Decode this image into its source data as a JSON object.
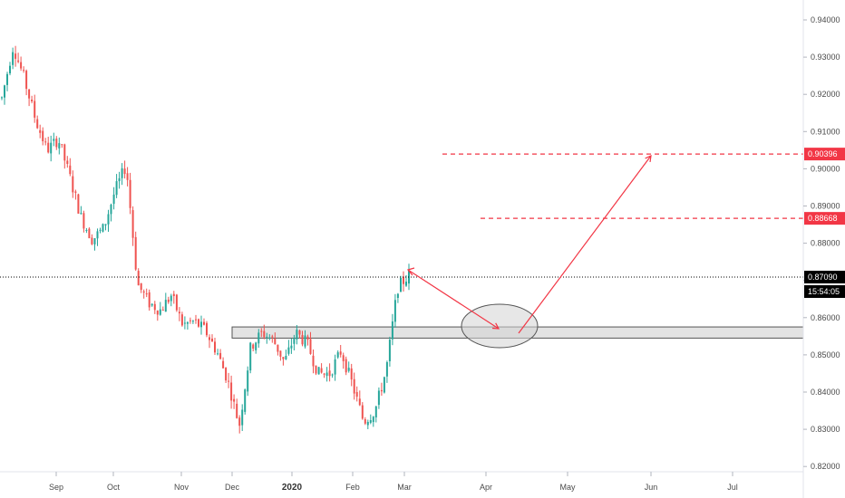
{
  "chart_data": {
    "type": "candlestick",
    "ylim": [
      0.8175,
      0.9445
    ],
    "y_ticks": [
      "0.82000",
      "0.83000",
      "0.84000",
      "0.85000",
      "0.86000",
      "0.87000",
      "0.88000",
      "0.89000",
      "0.90000",
      "0.91000",
      "0.92000",
      "0.93000",
      "0.94000"
    ],
    "x_ticks": [
      {
        "label": "Sep",
        "bold": false
      },
      {
        "label": "Oct",
        "bold": false
      },
      {
        "label": "Nov",
        "bold": false
      },
      {
        "label": "Dec",
        "bold": false
      },
      {
        "label": "2020",
        "bold": true
      },
      {
        "label": "Feb",
        "bold": false
      },
      {
        "label": "Mar",
        "bold": false
      },
      {
        "label": "Apr",
        "bold": false
      },
      {
        "label": "May",
        "bold": false
      },
      {
        "label": "Jun",
        "bold": false
      },
      {
        "label": "Jul",
        "bold": false
      }
    ],
    "colors": {
      "up": "#26a69a",
      "down": "#ef5350",
      "annotation": "#f23645",
      "axis_text": "#4a4a4a",
      "price_tag": "#000000",
      "target_tag": "#f23645"
    },
    "grid": false,
    "current_price": {
      "value": 0.8709,
      "label": "0.87090",
      "countdown": "15:54:05"
    },
    "targets": [
      {
        "value": 0.90396,
        "label": "0.90396"
      },
      {
        "value": 0.88668,
        "label": "0.88668"
      }
    ],
    "support_zone": {
      "low": 0.8545,
      "high": 0.8575
    },
    "anchors": [
      0.919,
      0.933,
      0.924,
      0.913,
      0.905,
      0.908,
      0.898,
      0.887,
      0.881,
      0.884,
      0.894,
      0.901,
      0.869,
      0.864,
      0.862,
      0.866,
      0.858,
      0.859,
      0.8565,
      0.851,
      0.843,
      0.831,
      0.852,
      0.856,
      0.854,
      0.848,
      0.856,
      0.853,
      0.845,
      0.845,
      0.851,
      0.842,
      0.832,
      0.835,
      0.846,
      0.868,
      0.8715
    ]
  }
}
